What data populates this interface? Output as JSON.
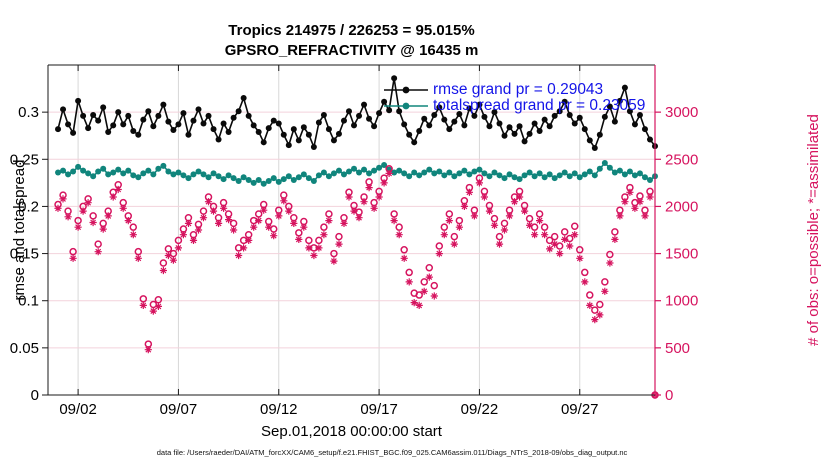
{
  "title_line1": "Tropics 214975 / 226253 = 95.015%",
  "title_line2": "GPSRO_REFRACTIVITY @ 16435 m",
  "left_axis_label": "rmse and totalspread",
  "right_axis_label": "# of obs: o=possible; *=assimilated",
  "x_axis_label": "Sep.01,2018 00:00:00 start",
  "footer_text": "data file: /Users/raeder/DAI/ATM_forcXX/CAM6_setup/f.e21.FHIST_BGC.f09_025.CAM6assim.011/Diags_NTrS_2018-09/obs_diag_output.nc",
  "legend": {
    "items": [
      {
        "label": "rmse grand pr = 0.29043",
        "color": "#0a0a0a"
      },
      {
        "label": "totalspread grand pr = 0.23059",
        "color": "#10857c"
      }
    ],
    "text_color": "#1414e8"
  },
  "colors": {
    "rmse": "#0a0a0a",
    "totalspread": "#10857c",
    "obs_pink": "#d6145f",
    "grid_vertical": "#d8d8d8",
    "grid_horizontal": "#f3d2dc",
    "axis_dark": "#1a1a1a"
  },
  "chart_data": {
    "type": "line",
    "title": "Tropics 214975 / 226253 = 95.015% | GPSRO_REFRACTIVITY @ 16435 m",
    "xlabel": "Sep.01,2018 00:00:00 start",
    "ylabel_left": "rmse and totalspread",
    "ylabel_right": "# of obs: o=possible; *=assimilated",
    "grid": true,
    "legend_position": "top-right-inside",
    "x_start_day": 0,
    "x_step_days": 0.25,
    "x_range_days": [
      -0.5,
      29.75
    ],
    "x_ticks": [
      {
        "day": 1,
        "label": "09/02"
      },
      {
        "day": 6,
        "label": "09/07"
      },
      {
        "day": 11,
        "label": "09/12"
      },
      {
        "day": 16,
        "label": "09/17"
      },
      {
        "day": 21,
        "label": "09/22"
      },
      {
        "day": 26,
        "label": "09/27"
      }
    ],
    "left_axis": {
      "range": [
        0,
        0.35
      ],
      "ticks": [
        {
          "v": 0,
          "label": "0"
        },
        {
          "v": 0.05,
          "label": "0.05"
        },
        {
          "v": 0.1,
          "label": "0.1"
        },
        {
          "v": 0.15,
          "label": "0.15"
        },
        {
          "v": 0.2,
          "label": "0.2"
        },
        {
          "v": 0.25,
          "label": "0.25"
        },
        {
          "v": 0.3,
          "label": "0.3"
        }
      ]
    },
    "right_axis": {
      "range": [
        0,
        3500
      ],
      "ticks": [
        {
          "v": 0,
          "label": "0"
        },
        {
          "v": 500,
          "label": "500"
        },
        {
          "v": 1000,
          "label": "1000"
        },
        {
          "v": 1500,
          "label": "1500"
        },
        {
          "v": 2000,
          "label": "2000"
        },
        {
          "v": 2500,
          "label": "2500"
        },
        {
          "v": 3000,
          "label": "3000"
        }
      ]
    },
    "series": [
      {
        "name": "rmse",
        "axis": "left",
        "marker": "dot-line",
        "color": "#0a0a0a",
        "grand_pr": 0.29043,
        "values": [
          0.282,
          0.303,
          0.287,
          0.278,
          0.312,
          0.296,
          0.283,
          0.297,
          0.291,
          0.305,
          0.279,
          0.286,
          0.3,
          0.287,
          0.296,
          0.28,
          0.276,
          0.292,
          0.301,
          0.285,
          0.296,
          0.308,
          0.29,
          0.281,
          0.287,
          0.299,
          0.276,
          0.291,
          0.303,
          0.288,
          0.296,
          0.282,
          0.271,
          0.288,
          0.279,
          0.294,
          0.301,
          0.315,
          0.296,
          0.286,
          0.279,
          0.268,
          0.283,
          0.291,
          0.288,
          0.276,
          0.265,
          0.282,
          0.27,
          0.284,
          0.276,
          0.263,
          0.289,
          0.297,
          0.282,
          0.27,
          0.277,
          0.291,
          0.301,
          0.286,
          0.296,
          0.308,
          0.293,
          0.285,
          0.299,
          0.311,
          0.302,
          0.336,
          0.301,
          0.287,
          0.276,
          0.268,
          0.28,
          0.293,
          0.286,
          0.297,
          0.305,
          0.292,
          0.282,
          0.29,
          0.298,
          0.286,
          0.304,
          0.296,
          0.308,
          0.295,
          0.285,
          0.3,
          0.288,
          0.275,
          0.284,
          0.277,
          0.285,
          0.269,
          0.277,
          0.288,
          0.28,
          0.292,
          0.285,
          0.296,
          0.301,
          0.311,
          0.297,
          0.288,
          0.294,
          0.282,
          0.27,
          0.262,
          0.276,
          0.295,
          0.306,
          0.29,
          0.312,
          0.326,
          0.301,
          0.287,
          0.297,
          0.282,
          0.271,
          0.264
        ]
      },
      {
        "name": "totalspread",
        "axis": "left",
        "marker": "dot-line",
        "color": "#10857c",
        "grand_pr": 0.23059,
        "values": [
          0.236,
          0.238,
          0.234,
          0.237,
          0.242,
          0.238,
          0.235,
          0.232,
          0.237,
          0.24,
          0.234,
          0.236,
          0.239,
          0.235,
          0.238,
          0.233,
          0.231,
          0.235,
          0.238,
          0.234,
          0.24,
          0.243,
          0.237,
          0.234,
          0.236,
          0.233,
          0.23,
          0.234,
          0.237,
          0.234,
          0.231,
          0.235,
          0.232,
          0.229,
          0.233,
          0.23,
          0.227,
          0.231,
          0.228,
          0.225,
          0.228,
          0.224,
          0.227,
          0.23,
          0.226,
          0.229,
          0.232,
          0.228,
          0.231,
          0.234,
          0.23,
          0.227,
          0.233,
          0.236,
          0.232,
          0.235,
          0.238,
          0.234,
          0.237,
          0.24,
          0.236,
          0.239,
          0.235,
          0.238,
          0.241,
          0.244,
          0.239,
          0.236,
          0.238,
          0.235,
          0.232,
          0.236,
          0.233,
          0.236,
          0.239,
          0.235,
          0.237,
          0.233,
          0.236,
          0.232,
          0.235,
          0.238,
          0.234,
          0.237,
          0.239,
          0.235,
          0.232,
          0.236,
          0.233,
          0.23,
          0.234,
          0.231,
          0.229,
          0.233,
          0.236,
          0.232,
          0.235,
          0.231,
          0.234,
          0.23,
          0.233,
          0.236,
          0.232,
          0.235,
          0.231,
          0.234,
          0.237,
          0.233,
          0.24,
          0.246,
          0.241,
          0.236,
          0.238,
          0.234,
          0.237,
          0.233,
          0.235,
          0.231,
          0.228,
          0.232
        ]
      },
      {
        "name": "possible",
        "axis": "right",
        "marker": "open-circle",
        "color": "#d6145f",
        "values": [
          2020,
          2120,
          1950,
          1520,
          1850,
          2000,
          2080,
          1900,
          1600,
          1820,
          1950,
          2150,
          2230,
          2040,
          1900,
          1780,
          1520,
          1020,
          540,
          960,
          1010,
          1400,
          1550,
          1500,
          1640,
          1760,
          1880,
          1700,
          1810,
          1950,
          2100,
          2000,
          1880,
          2040,
          1920,
          1820,
          1560,
          1640,
          1700,
          1850,
          1920,
          2020,
          1840,
          1760,
          1960,
          2120,
          2000,
          1880,
          1720,
          1840,
          1640,
          1560,
          1640,
          1780,
          1920,
          1500,
          1680,
          1880,
          2150,
          2010,
          1940,
          2100,
          2260,
          2040,
          2160,
          2300,
          2400,
          1920,
          1780,
          1540,
          1300,
          1080,
          1060,
          1200,
          1350,
          1160,
          1580,
          1780,
          1920,
          1680,
          1850,
          2060,
          2200,
          1960,
          2300,
          2160,
          2010,
          1870,
          1680,
          1820,
          1960,
          2100,
          2160,
          2010,
          1870,
          1780,
          1920,
          1780,
          1640,
          1680,
          1580,
          1730,
          1660,
          1790,
          1540,
          1300,
          1060,
          900,
          960,
          1200,
          1490,
          1730,
          1960,
          2100,
          2200,
          2040,
          2110,
          1960,
          2160,
          0
        ]
      },
      {
        "name": "assimilated",
        "axis": "right",
        "marker": "asterisk",
        "color": "#d6145f",
        "values": [
          1980,
          2080,
          1890,
          1450,
          1780,
          1950,
          2040,
          1830,
          1520,
          1760,
          1900,
          2100,
          2180,
          1980,
          1850,
          1700,
          1450,
          950,
          480,
          890,
          940,
          1320,
          1480,
          1430,
          1560,
          1700,
          1820,
          1640,
          1750,
          1880,
          2050,
          1950,
          1820,
          1980,
          1860,
          1750,
          1480,
          1560,
          1640,
          1780,
          1850,
          1960,
          1780,
          1690,
          1900,
          2060,
          1950,
          1820,
          1650,
          1780,
          1560,
          1480,
          1560,
          1700,
          1850,
          1420,
          1600,
          1820,
          2100,
          1950,
          1880,
          2050,
          2200,
          1980,
          2100,
          2250,
          2350,
          1850,
          1700,
          1450,
          1200,
          980,
          950,
          1100,
          1250,
          1050,
          1500,
          1700,
          1850,
          1600,
          1780,
          2000,
          2150,
          1900,
          2250,
          2100,
          1950,
          1800,
          1600,
          1750,
          1900,
          2050,
          2100,
          1950,
          1800,
          1700,
          1850,
          1700,
          1550,
          1600,
          1500,
          1650,
          1580,
          1700,
          1450,
          1200,
          950,
          800,
          850,
          1100,
          1400,
          1650,
          1900,
          2050,
          2150,
          1980,
          2050,
          1900,
          2100,
          0
        ]
      }
    ]
  }
}
